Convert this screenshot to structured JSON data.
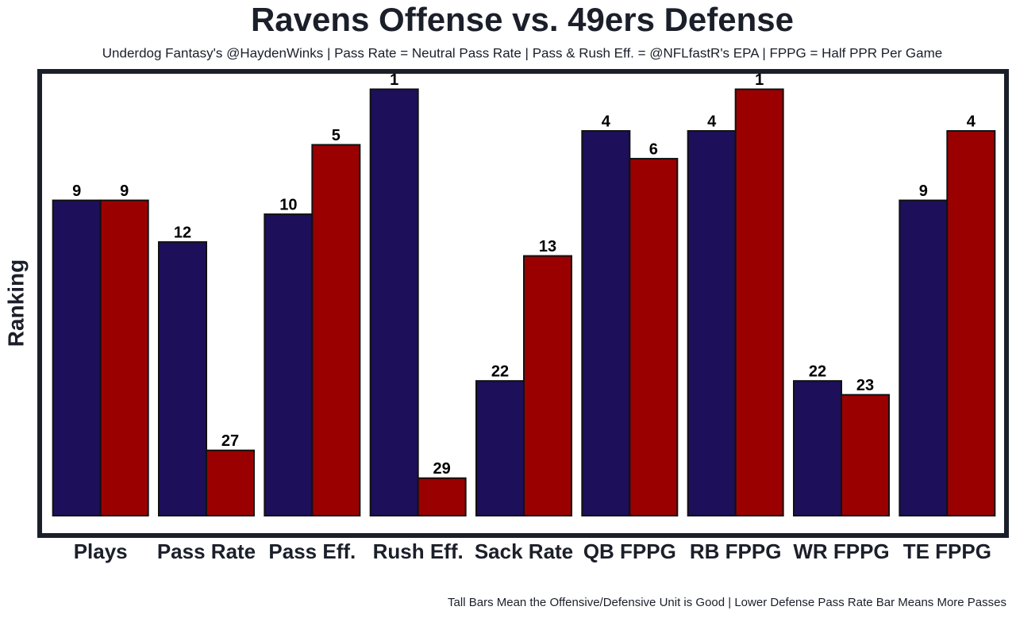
{
  "chart_data": {
    "type": "bar",
    "title": "Ravens Offense vs. 49ers Defense",
    "subtitle": "Underdog Fantasy's @HaydenWinks | Pass Rate = Neutral Pass Rate | Pass & Rush Eff. = @NFLfastR's EPA | FPPG = Half PPR Per Game",
    "ylabel": "Ranking",
    "footnote": "Tall Bars Mean the Offensive/Defensive Unit is Good | Lower Defense Pass Rate Bar Means More Passes",
    "categories": [
      "Plays",
      "Pass Rate",
      "Pass Eff.",
      "Rush Eff.",
      "Sack Rate",
      "QB FPPG",
      "RB FPPG",
      "WR FPPG",
      "TE FPPG"
    ],
    "series": [
      {
        "color": "#1d0f5a",
        "values": [
          9,
          12,
          10,
          1,
          22,
          4,
          4,
          22,
          9
        ]
      },
      {
        "color": "#9b0000",
        "values": [
          9,
          27,
          5,
          29,
          13,
          6,
          1,
          23,
          4
        ]
      }
    ],
    "ylim": [
      31.7,
      0
    ]
  }
}
